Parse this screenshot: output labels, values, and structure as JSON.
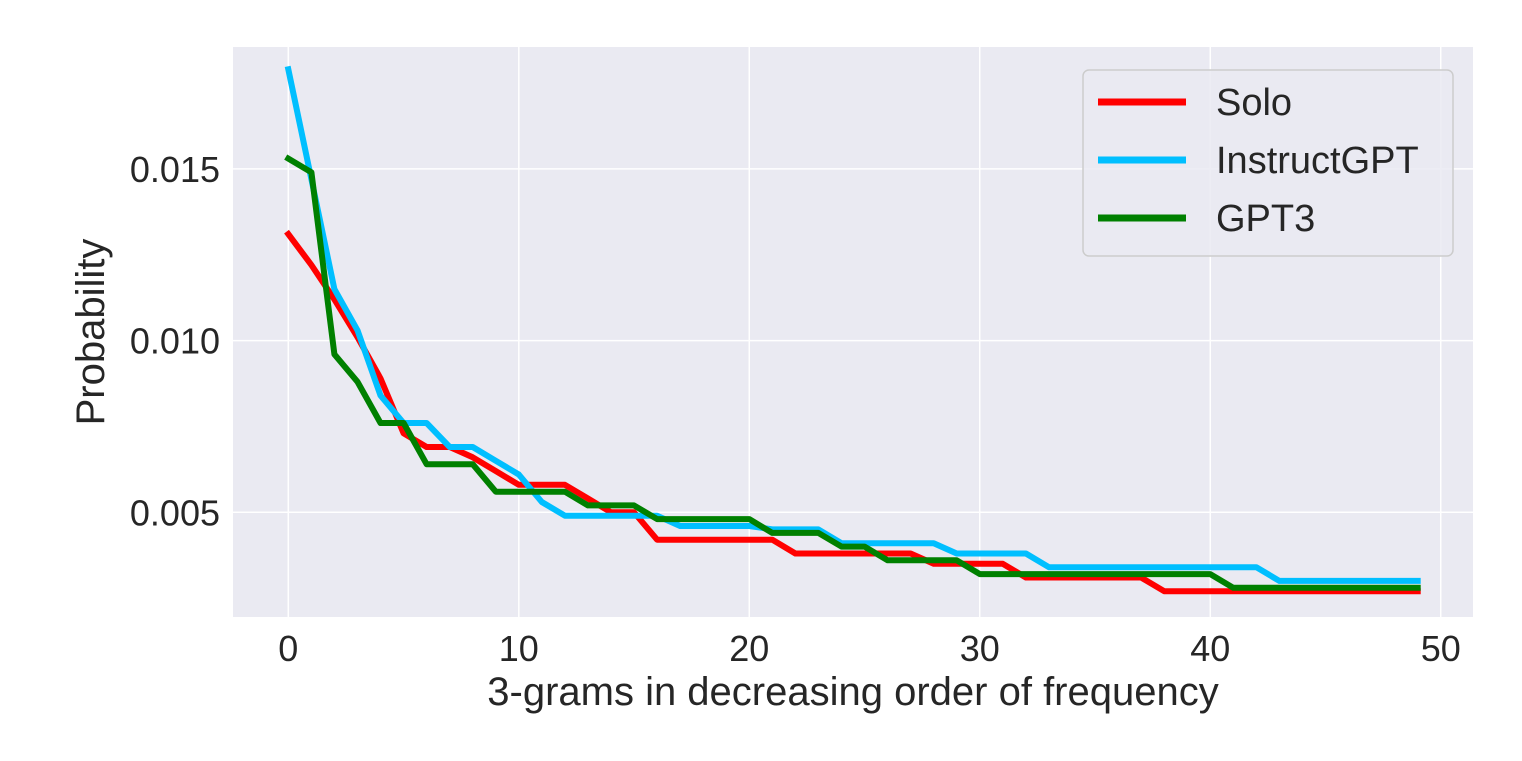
{
  "chart_data": {
    "type": "line",
    "title": "",
    "xlabel": "3-grams in decreasing order of frequency",
    "ylabel": "Probability",
    "xlim": [
      -2.4,
      51.4
    ],
    "ylim": [
      0.00195,
      0.01855
    ],
    "xticks": [
      0,
      10,
      20,
      30,
      40,
      50
    ],
    "xtick_labels": [
      "0",
      "10",
      "20",
      "30",
      "40",
      "50"
    ],
    "yticks": [
      0.005,
      0.01,
      0.015
    ],
    "ytick_labels": [
      "0.005",
      "0.010",
      "0.015"
    ],
    "grid": true,
    "legend_position": "top-right",
    "x": [
      0,
      1,
      2,
      3,
      4,
      5,
      6,
      7,
      8,
      9,
      10,
      11,
      12,
      13,
      14,
      15,
      16,
      17,
      18,
      19,
      20,
      21,
      22,
      23,
      24,
      25,
      26,
      27,
      28,
      29,
      30,
      31,
      32,
      33,
      34,
      35,
      36,
      37,
      38,
      39,
      40,
      41,
      42,
      43,
      44,
      45,
      46,
      47,
      48,
      49
    ],
    "series": [
      {
        "name": "Solo",
        "color": "#ff0000",
        "values": [
          0.0131,
          0.0122,
          0.0112,
          0.0101,
          0.0089,
          0.0073,
          0.0069,
          0.0069,
          0.0066,
          0.0062,
          0.0058,
          0.0058,
          0.0058,
          0.0054,
          0.005,
          0.005,
          0.0042,
          0.0042,
          0.0042,
          0.0042,
          0.0042,
          0.0042,
          0.0038,
          0.0038,
          0.0038,
          0.0038,
          0.0038,
          0.0038,
          0.0035,
          0.0035,
          0.0035,
          0.0035,
          0.0031,
          0.0031,
          0.0031,
          0.0031,
          0.0031,
          0.0031,
          0.0027,
          0.0027,
          0.0027,
          0.0027,
          0.0027,
          0.0027,
          0.0027,
          0.0027,
          0.0027,
          0.0027,
          0.0027,
          0.0027
        ]
      },
      {
        "name": "InstructGPT",
        "color": "#00bfff",
        "values": [
          0.0179,
          0.0147,
          0.0115,
          0.0103,
          0.0084,
          0.0076,
          0.0076,
          0.0069,
          0.0069,
          0.0065,
          0.0061,
          0.0053,
          0.0049,
          0.0049,
          0.0049,
          0.0049,
          0.0049,
          0.0046,
          0.0046,
          0.0046,
          0.0046,
          0.0045,
          0.0045,
          0.0045,
          0.0041,
          0.0041,
          0.0041,
          0.0041,
          0.0041,
          0.0038,
          0.0038,
          0.0038,
          0.0038,
          0.0034,
          0.0034,
          0.0034,
          0.0034,
          0.0034,
          0.0034,
          0.0034,
          0.0034,
          0.0034,
          0.0034,
          0.003,
          0.003,
          0.003,
          0.003,
          0.003,
          0.003,
          0.003
        ]
      },
      {
        "name": "GPT3",
        "color": "#008000",
        "values": [
          0.0153,
          0.0149,
          0.0096,
          0.0088,
          0.0076,
          0.0076,
          0.0064,
          0.0064,
          0.0064,
          0.0056,
          0.0056,
          0.0056,
          0.0056,
          0.0052,
          0.0052,
          0.0052,
          0.0048,
          0.0048,
          0.0048,
          0.0048,
          0.0048,
          0.0044,
          0.0044,
          0.0044,
          0.004,
          0.004,
          0.0036,
          0.0036,
          0.0036,
          0.0036,
          0.0032,
          0.0032,
          0.0032,
          0.0032,
          0.0032,
          0.0032,
          0.0032,
          0.0032,
          0.0032,
          0.0032,
          0.0032,
          0.0028,
          0.0028,
          0.0028,
          0.0028,
          0.0028,
          0.0028,
          0.0028,
          0.0028,
          0.0028
        ]
      }
    ]
  }
}
